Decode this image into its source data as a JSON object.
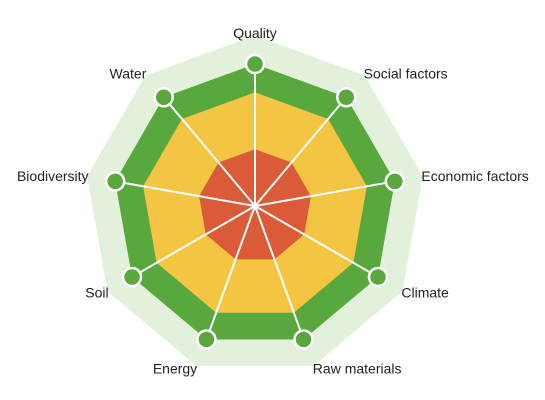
{
  "chart_data": {
    "type": "radar",
    "axes": [
      "Quality",
      "Social factors",
      "Economic factors",
      "Climate",
      "Raw materials",
      "Energy",
      "Soil",
      "Biodiversity",
      "Water"
    ],
    "range": [
      0,
      100
    ],
    "bands": [
      {
        "from": 0,
        "to": 40,
        "color": "#db5a37"
      },
      {
        "from": 40,
        "to": 80,
        "color": "#f4c542"
      },
      {
        "from": 80,
        "to": 100,
        "color": "#58a83d"
      },
      {
        "from": 100,
        "to": 120,
        "color": "#e3f0dc"
      }
    ],
    "values": [
      100,
      100,
      100,
      100,
      100,
      100,
      100,
      100,
      100
    ],
    "marker_color": "#58a83d",
    "line_color": "#ffffff"
  }
}
